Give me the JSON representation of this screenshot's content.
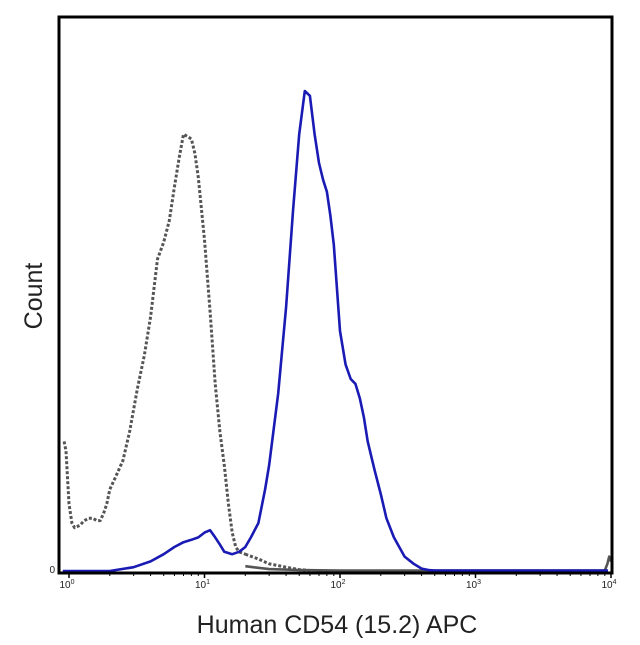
{
  "chart_data": {
    "type": "line",
    "title": "",
    "xlabel": "Human CD54 (15.2) APC",
    "ylabel": "Count",
    "x_scale": "log",
    "xlim": [
      0.9,
      10000
    ],
    "ylim": [
      0,
      100
    ],
    "y_ticks": [
      {
        "value": 0,
        "label": "0"
      }
    ],
    "x_ticks": [
      {
        "value": 1,
        "base": "10",
        "exp": "0"
      },
      {
        "value": 10,
        "base": "10",
        "exp": "1"
      },
      {
        "value": 100,
        "base": "10",
        "exp": "2"
      },
      {
        "value": 1000,
        "base": "10",
        "exp": "3"
      },
      {
        "value": 10000,
        "base": "10",
        "exp": "4"
      }
    ],
    "grid": false,
    "legend": "none",
    "series": [
      {
        "style": "dotted",
        "color": "#555555",
        "x": [
          0.92,
          0.95,
          1.0,
          1.05,
          1.1,
          1.2,
          1.3,
          1.4,
          1.5,
          1.6,
          1.7,
          1.8,
          1.9,
          2.0,
          2.2,
          2.5,
          2.8,
          3.2,
          3.6,
          4.0,
          4.5,
          5.0,
          5.5,
          6.0,
          6.5,
          7.0,
          7.5,
          8.0,
          8.5,
          9.0,
          10.0,
          11.0,
          12.0,
          13.0,
          14.0,
          15.0,
          16.0,
          17.0,
          18.0,
          20.0
        ],
        "y": [
          27,
          25,
          14,
          10,
          9,
          9.5,
          10.5,
          11,
          11,
          10.5,
          10.5,
          12,
          14,
          17,
          19.5,
          23,
          29,
          38,
          45,
          53,
          65,
          68.5,
          73,
          80,
          86,
          91,
          90.5,
          90,
          87,
          82,
          69,
          54,
          39,
          29,
          22,
          14,
          8,
          5,
          4,
          3.5
        ]
      },
      {
        "style": "dotted",
        "color": "#555555",
        "x": [
          20.0,
          25.0,
          30.0,
          40.0,
          50.0,
          60.0
        ],
        "y": [
          3.5,
          2.5,
          1.5,
          0.8,
          0.3,
          0.1
        ]
      },
      {
        "style": "solid",
        "color": "#555555",
        "x": [
          20.0,
          30.0,
          50.0,
          100.0,
          1000.0,
          9000.0,
          9400.0,
          9700.0,
          10000.0
        ],
        "y": [
          1,
          0.4,
          0.2,
          0.1,
          0.1,
          0.1,
          1.5,
          3,
          2
        ]
      },
      {
        "style": "solid",
        "color": "#1a1ab4",
        "x": [
          0.9,
          2.0,
          3.0,
          4.0,
          5.0,
          6.0,
          7.0,
          8.0,
          9.0,
          10.0,
          11.0,
          12.0,
          13.0,
          14.0,
          16.0,
          18.0,
          20.0,
          22.0,
          25.0,
          28.0,
          30.0,
          35.0,
          40.0,
          45.0,
          50.0,
          55.0,
          60.0,
          65.0,
          70.0,
          75.0,
          80.0,
          85.0,
          90.0,
          100.0,
          110.0,
          120.0,
          130.0,
          140.0,
          150.0,
          160.0,
          180.0,
          200.0,
          220.0,
          250.0,
          300.0,
          350.0,
          400.0,
          450.0,
          500.0,
          600.0,
          800.0,
          1000.0,
          2000.0,
          9500.0
        ],
        "y": [
          0,
          0,
          0.8,
          2,
          3.5,
          5,
          6,
          6.5,
          7,
          8,
          8.5,
          7,
          5.5,
          4,
          3.5,
          4,
          5,
          7,
          10,
          17,
          22,
          37,
          55,
          75,
          91,
          100,
          99,
          91,
          85,
          81.5,
          79,
          74,
          68,
          50,
          43,
          40,
          39,
          36,
          32,
          27,
          21,
          16,
          11,
          7,
          3,
          1.5,
          0.5,
          0.2,
          0.1,
          0.1,
          0.1,
          0.1,
          0.1,
          0.1
        ]
      }
    ]
  }
}
